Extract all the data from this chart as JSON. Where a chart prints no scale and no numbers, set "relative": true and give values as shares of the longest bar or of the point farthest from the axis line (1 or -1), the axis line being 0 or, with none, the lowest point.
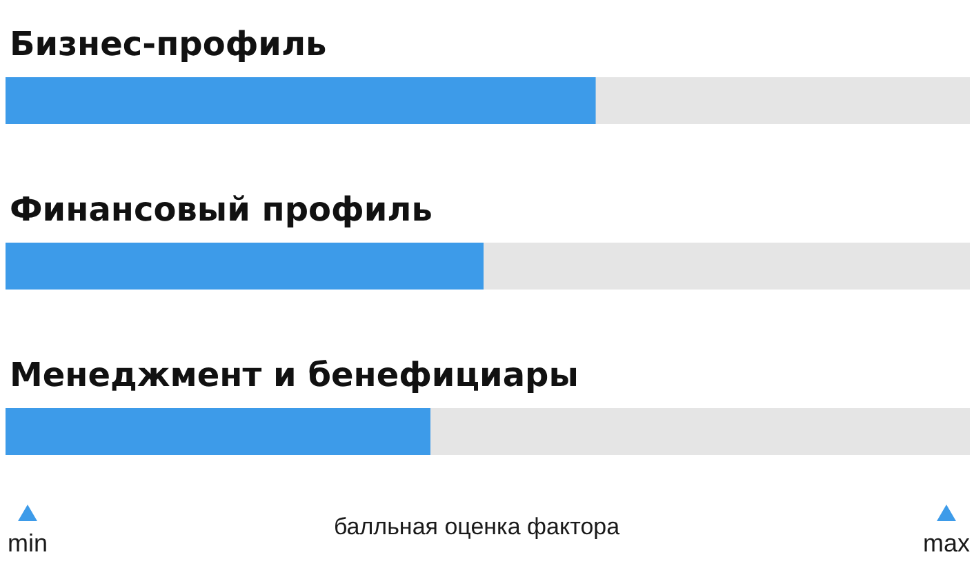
{
  "chart_data": {
    "type": "bar",
    "orientation": "horizontal",
    "relative": true,
    "categories": [
      "Бизнес-профиль",
      "Финансовый профиль",
      "Менеджмент и бенефициары"
    ],
    "values": [
      1,
      0.81,
      0.72
    ],
    "color": "#3d9be9",
    "xlabel": "балльная оценка фактора",
    "annotations": [
      "min",
      "max"
    ]
  }
}
